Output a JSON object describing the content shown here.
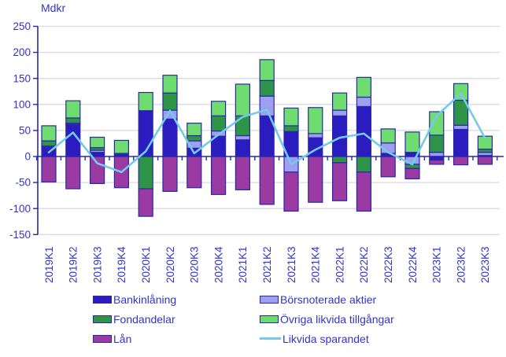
{
  "chart_data": {
    "type": "bar",
    "subtype": "stacked-bar-with-line",
    "title": "",
    "ylabel": "Mdkr",
    "xlabel": "",
    "ylim": [
      -150,
      250
    ],
    "ytick_step": 50,
    "grid": true,
    "legend_position": "bottom",
    "categories": [
      "2019K1",
      "2019K2",
      "2019K3",
      "2019K4",
      "2020K1",
      "2020K2",
      "2020K3",
      "2020K4",
      "2021K1",
      "2021K2",
      "2021K3",
      "2021K4",
      "2022K1",
      "2022K2",
      "2022K3",
      "2022K4",
      "2023K1",
      "2023K2",
      "2023K3"
    ],
    "series": [
      {
        "name": "Bankinlåning",
        "kind": "bar",
        "color": "#2a1cbe",
        "values": [
          18,
          62,
          8,
          4,
          88,
          72,
          16,
          39,
          32,
          78,
          48,
          36,
          78,
          96,
          6,
          8,
          -7,
          52,
          2
        ]
      },
      {
        "name": "Börsnoterade aktier",
        "kind": "bar",
        "color": "#9f9ff0",
        "values": [
          2,
          2,
          4,
          0,
          0,
          17,
          14,
          10,
          8,
          38,
          -30,
          8,
          11,
          18,
          20,
          -15,
          8,
          8,
          6
        ]
      },
      {
        "name": "Fondandelar",
        "kind": "bar",
        "color": "#2e9447",
        "values": [
          10,
          10,
          5,
          2,
          -62,
          33,
          10,
          29,
          38,
          30,
          11,
          0,
          -12,
          -30,
          0,
          -8,
          33,
          48,
          6
        ]
      },
      {
        "name": "Övriga likvida tillgångar",
        "kind": "bar",
        "color": "#6edc6e",
        "values": [
          29,
          33,
          20,
          25,
          35,
          34,
          24,
          28,
          61,
          40,
          34,
          50,
          33,
          38,
          27,
          39,
          45,
          32,
          25
        ]
      },
      {
        "name": "Lån",
        "kind": "bar",
        "color": "#9b3aa0",
        "values": [
          -49,
          -62,
          -52,
          -60,
          -53,
          -67,
          -60,
          -73,
          -64,
          -92,
          -75,
          -88,
          -73,
          -75,
          -39,
          -20,
          -8,
          -16,
          -15
        ]
      },
      {
        "name": "Likvida sparandet",
        "kind": "line",
        "color": "#74c9ed",
        "values": [
          8,
          46,
          -13,
          -30,
          10,
          88,
          6,
          42,
          76,
          90,
          -15,
          13,
          36,
          44,
          8,
          -15,
          78,
          121,
          35
        ]
      }
    ]
  },
  "colors": {
    "axis": "#2828a8",
    "bar_border": "#2828a8",
    "grid": "#d9d9e8",
    "text": "#3333cc",
    "background": "#ffffff"
  }
}
